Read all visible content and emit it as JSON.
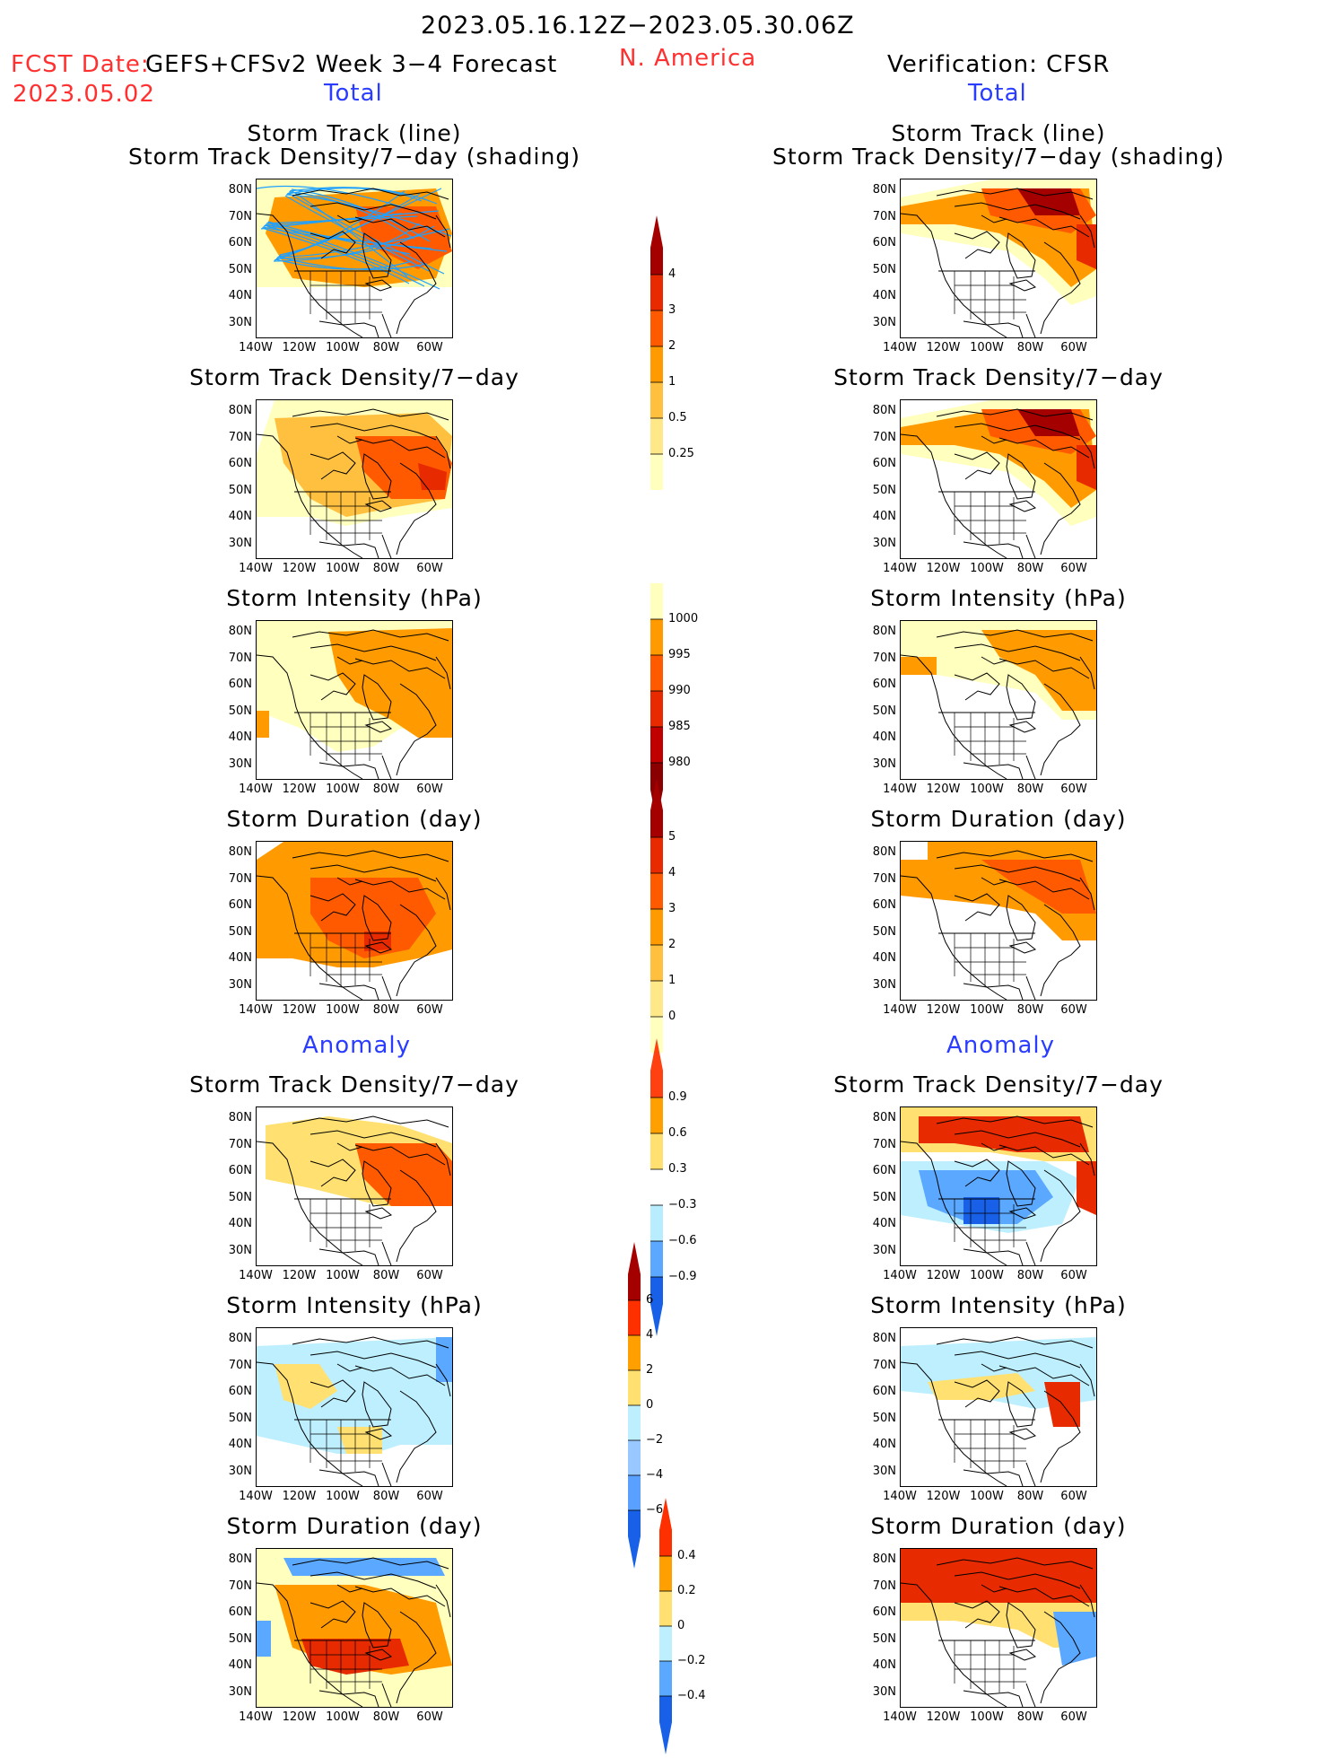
{
  "header": {
    "period": "2023.05.16.12Z−2023.05.30.06Z",
    "fcst_date_label": "FCST Date:",
    "model": "GEFS+CFSv2 Week 3−4 Forecast",
    "fcst_date": "2023.05.02",
    "region": "N. America",
    "verification": "Verification: CFSR",
    "left_section": "Total",
    "right_section": "Total"
  },
  "anomaly_labels": {
    "left": "Anomaly",
    "right": "Anomaly"
  },
  "panels": [
    {
      "title1": "Storm Track (line)",
      "title2": "Storm Track Density/7−day (shading)"
    },
    {
      "title1": "Storm Track Density/7−day",
      "title2": ""
    },
    {
      "title1": "Storm Intensity (hPa)",
      "title2": ""
    },
    {
      "title1": "Storm Duration (day)",
      "title2": ""
    },
    {
      "title1": "Storm Track Density/7−day",
      "title2": ""
    },
    {
      "title1": "Storm Intensity (hPa)",
      "title2": ""
    },
    {
      "title1": "Storm Duration (day)",
      "title2": ""
    }
  ],
  "axes": {
    "lat_ticks": [
      "80N",
      "70N",
      "60N",
      "50N",
      "40N",
      "30N"
    ],
    "lon_ticks": [
      "140W",
      "120W",
      "100W",
      "80W",
      "60W"
    ]
  },
  "colorbars": [
    {
      "name": "total-density",
      "labels": [
        "4",
        "3",
        "2",
        "1",
        "0.5",
        "0.25"
      ],
      "colors": [
        "#a50000",
        "#e82a00",
        "#ff5a00",
        "#ff9a00",
        "#ffc040",
        "#ffe888",
        "#ffffbe"
      ]
    },
    {
      "name": "total-intensity",
      "labels": [
        "1000",
        "995",
        "990",
        "985",
        "980"
      ],
      "colors": [
        "#ffffbe",
        "#ff9a00",
        "#ff5a00",
        "#e82a00",
        "#c00000",
        "#8a0000"
      ]
    },
    {
      "name": "total-duration",
      "labels": [
        "5",
        "4",
        "3",
        "2",
        "1",
        "0"
      ],
      "colors": [
        "#a50000",
        "#e82a00",
        "#ff5a00",
        "#ff9a00",
        "#ffc040",
        "#ffe888",
        "#ffffbe"
      ]
    },
    {
      "name": "anom-density",
      "labels": [
        "0.9",
        "0.6",
        "0.3",
        "−0.3",
        "−0.6",
        "−0.9"
      ],
      "colors": [
        "#ff4010",
        "#ffa000",
        "#ffe070",
        "#ffffff",
        "#b8ecff",
        "#5aa8ff",
        "#1860e8"
      ]
    },
    {
      "name": "anom-intensity",
      "labels": [
        "6",
        "4",
        "2",
        "0",
        "−2",
        "−4",
        "−6"
      ],
      "colors": [
        "#a50000",
        "#ff3000",
        "#ffa000",
        "#ffe070",
        "#bdefff",
        "#98c8ff",
        "#5aa0ff",
        "#1860e8"
      ]
    },
    {
      "name": "anom-duration",
      "labels": [
        "0.4",
        "0.2",
        "0",
        "−0.2",
        "−0.4"
      ],
      "colors": [
        "#ff3000",
        "#ffa000",
        "#ffe070",
        "#bdefff",
        "#5aa8ff",
        "#1860e8"
      ]
    }
  ],
  "colors": {
    "red": "#ff3030",
    "blue": "#2a3cff",
    "track_line": "#1ea0ff",
    "light_yellow": "#ffffbe",
    "yellow": "#ffe070",
    "light_orange": "#ffc040",
    "orange": "#ff9a00",
    "dark_orange": "#ff5a00",
    "red_fill": "#e82a00",
    "dark_red": "#a50000",
    "light_blue": "#bdefff",
    "mid_blue": "#5aa8ff",
    "dark_blue": "#1860e8"
  }
}
